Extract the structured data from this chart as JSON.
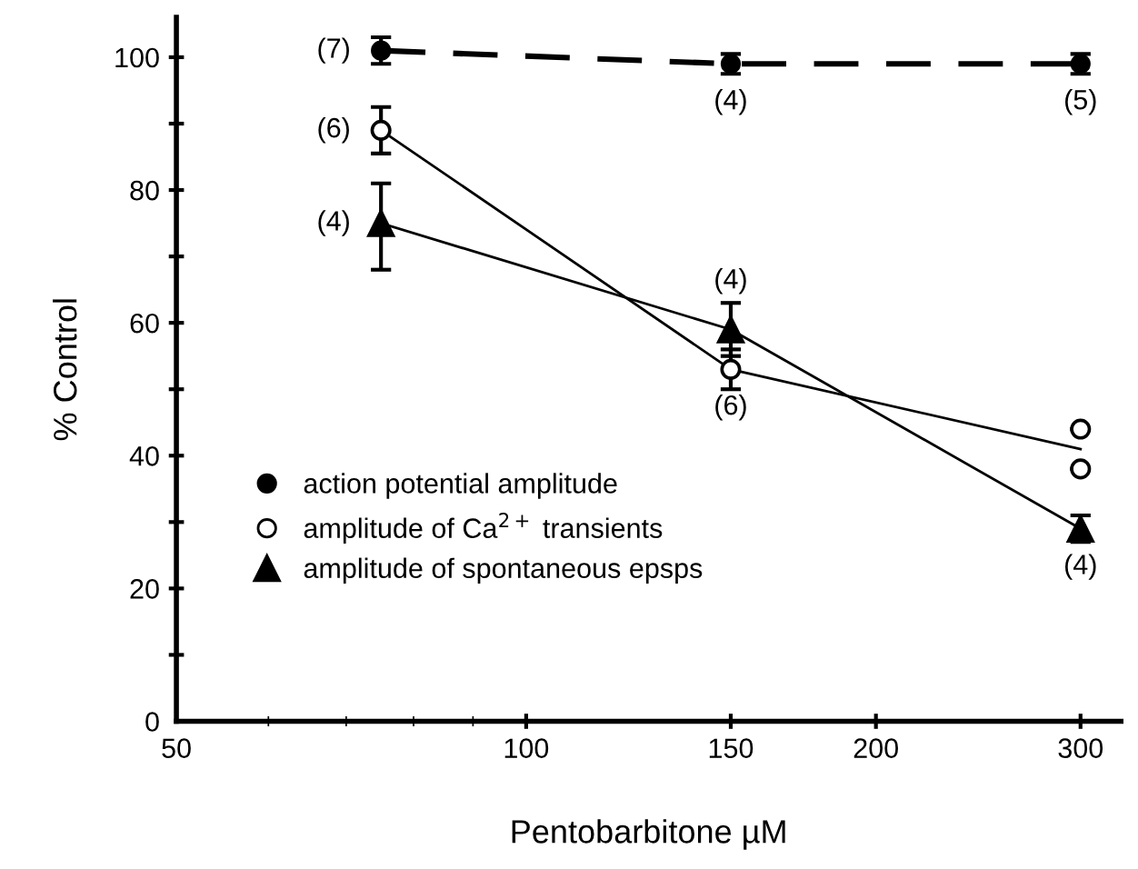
{
  "chart_data": {
    "type": "line",
    "xlabel": "Pentobarbitone µM",
    "ylabel": "% Control",
    "log": "x",
    "xlim": [
      50,
      325
    ],
    "xticks": [
      50,
      100,
      150,
      200,
      300
    ],
    "ylim": [
      0,
      106
    ],
    "yticks": [
      0,
      {
        "value": 10,
        "label": null
      },
      20,
      {
        "value": 30,
        "label": null
      },
      40,
      {
        "value": 50,
        "label": null
      },
      60,
      {
        "value": 70,
        "label": null
      },
      80,
      {
        "value": 90,
        "label": null
      },
      100
    ],
    "grid": false,
    "legend": "bottom left",
    "series": [
      {
        "name": "action potential amplitude",
        "color": "#000000",
        "marker": "circle",
        "line_style": "dashed",
        "x": [
          75,
          150,
          300
        ],
        "values": [
          101,
          99,
          99
        ],
        "errors": [
          2,
          1.5,
          1.5
        ]
      },
      {
        "name": "amplitude of Ca$^{2+}$ transients",
        "type": "scatter",
        "color": "#000000",
        "marker": "circle",
        "x": [
          75,
          150,
          300,
          300
        ],
        "values": [
          89,
          53,
          44,
          38
        ],
        "errors": [
          3.5,
          3,
          null,
          null
        ]
      },
      {
        "color": "#000000",
        "marker": "none",
        "line_style": "solid",
        "x": [
          75,
          150,
          300
        ],
        "values": [
          89,
          53,
          41
        ]
      },
      {
        "name": "amplitude of spontaneous epsps",
        "color": "#000000",
        "marker": "triangle",
        "line_style": "solid",
        "x": [
          75,
          150,
          300
        ],
        "values": [
          75,
          59,
          29
        ],
        "errors": [
          [
            68,
            81
          ],
          [
            55,
            63
          ],
          [
            27,
            31
          ]
        ]
      }
    ],
    "annotations": [
      {
        "text": "(7)",
        "x": 75,
        "y": 101
      },
      {
        "text": "(4)",
        "x": 150,
        "y": 99
      },
      {
        "text": "(5)",
        "x": 300,
        "y": 99
      },
      {
        "text": "(6)",
        "x": 75,
        "y": 89
      },
      {
        "text": "(4)",
        "x": 75,
        "y": 75
      },
      {
        "text": "(4)",
        "x": 150,
        "y": 59
      },
      {
        "text": "(6)",
        "x": 150,
        "y": 53
      },
      {
        "text": "(4)",
        "x": 300,
        "y": 29
      }
    ]
  }
}
